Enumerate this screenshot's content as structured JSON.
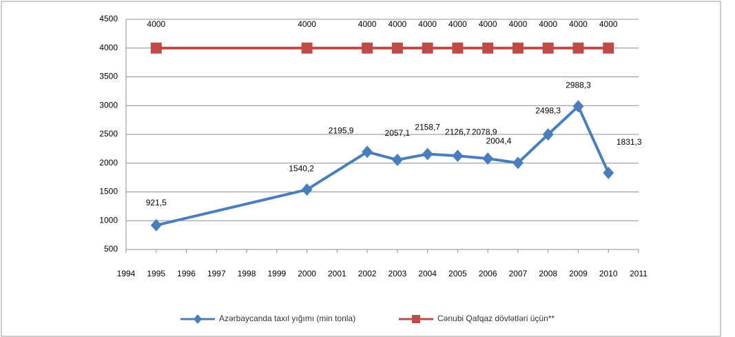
{
  "chart_data": {
    "type": "line",
    "x": [
      1995,
      2000,
      2002,
      2003,
      2004,
      2005,
      2006,
      2007,
      2008,
      2009,
      2010
    ],
    "series": [
      {
        "name": "Azərbaycanda taxıl yığımı (min tonla)",
        "color": "#4a7ebb",
        "values": [
          921.5,
          1540.2,
          2195.9,
          2057.1,
          2158.7,
          2126.7,
          2078.9,
          2004.4,
          2498.3,
          2988.3,
          1831.3
        ],
        "value_labels": [
          "921,5",
          "1540,2",
          "2195,9",
          "2057,1",
          "2158,7",
          "2126,7",
          "2078,9",
          "2004,4",
          "2498,3",
          "2988,3",
          "1831,3"
        ],
        "marker": "diamond"
      },
      {
        "name": "Cənubi Qafqaz dövlətləri üçün**",
        "color": "#be4b48",
        "values": [
          4000,
          4000,
          4000,
          4000,
          4000,
          4000,
          4000,
          4000,
          4000,
          4000,
          4000
        ],
        "marker": "square"
      }
    ],
    "xlim": [
      1994,
      2011
    ],
    "xticks": [
      1994,
      1995,
      1996,
      1997,
      1998,
      1999,
      2000,
      2001,
      2002,
      2003,
      2004,
      2005,
      2006,
      2007,
      2008,
      2009,
      2010,
      2011
    ],
    "ylim": [
      500,
      4500
    ],
    "yticks": [
      500,
      1000,
      1500,
      2000,
      2500,
      3000,
      3500,
      4000,
      4500
    ],
    "grid": true,
    "legend": "bottom"
  }
}
